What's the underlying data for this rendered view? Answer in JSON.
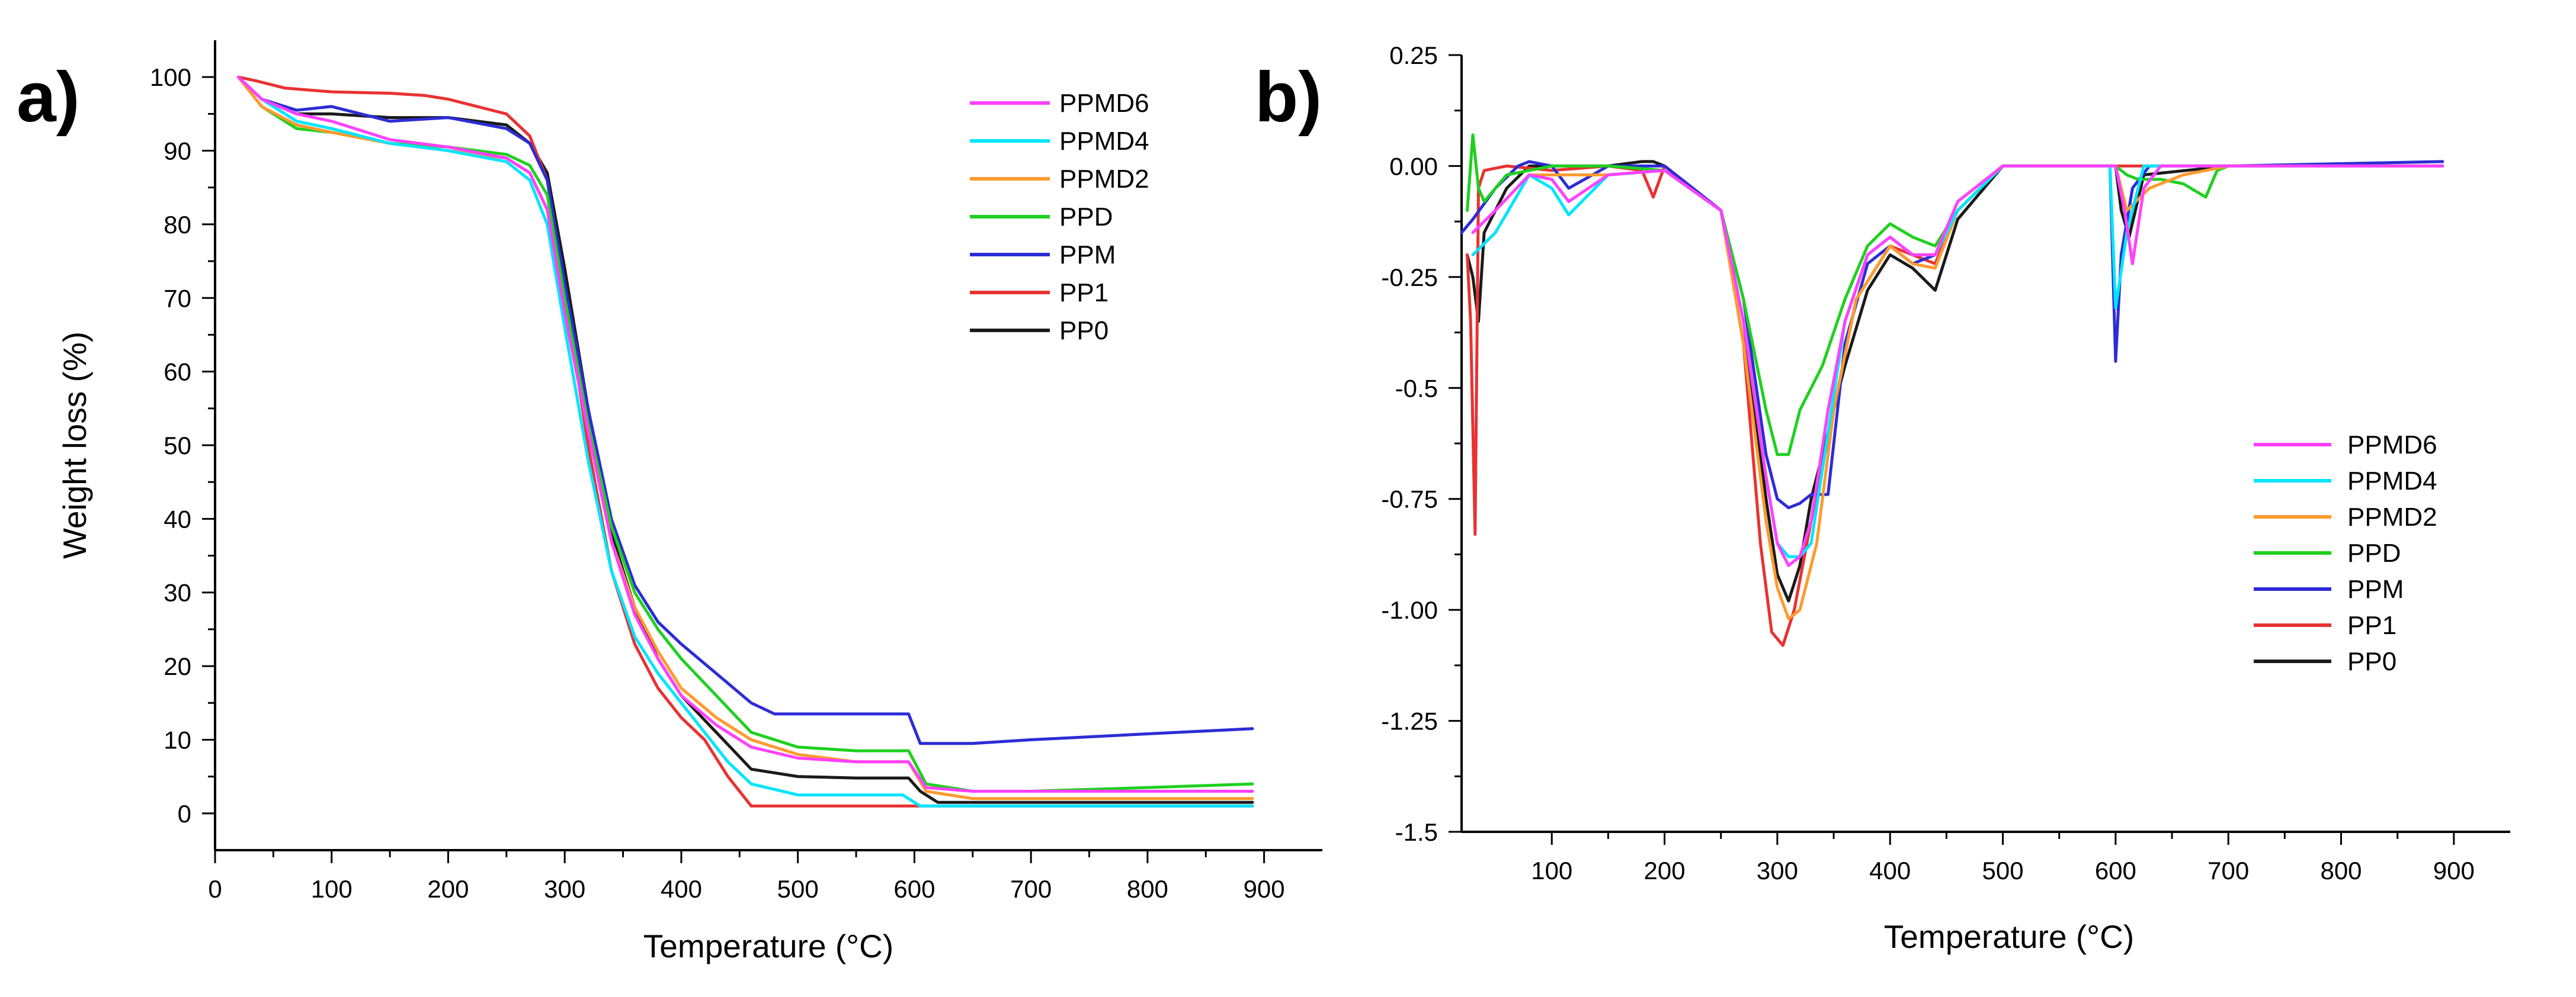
{
  "colors": {
    "PPMD6": "#ff40ff",
    "PPMD4": "#00e5ff",
    "PPMD2": "#ff9a2e",
    "PPD": "#1fd01f",
    "PPM": "#2c2cd6",
    "PP1": "#e83232",
    "PP0": "#1a1a1a"
  },
  "chart_data": [
    {
      "panel": "a)",
      "type": "line",
      "title": "",
      "xlabel": "Temperature (°C)",
      "ylabel": "Weight loss (%)",
      "xlim": [
        0,
        950
      ],
      "ylim": [
        -5,
        105
      ],
      "xticks": [
        0,
        100,
        200,
        300,
        400,
        500,
        600,
        700,
        800,
        900
      ],
      "yticks": [
        0,
        10,
        20,
        30,
        40,
        50,
        60,
        70,
        80,
        90,
        100
      ],
      "legend": [
        "PPMD6",
        "PPMD4",
        "PPMD2",
        "PPD",
        "PPM",
        "PP1",
        "PP0"
      ],
      "legend_position": "top-right",
      "series": [
        {
          "name": "PPMD6",
          "x": [
            20,
            40,
            70,
            100,
            150,
            200,
            250,
            270,
            285,
            300,
            320,
            340,
            360,
            380,
            400,
            430,
            460,
            500,
            550,
            595,
            610,
            650,
            700,
            800,
            890
          ],
          "y": [
            100,
            97,
            95,
            94,
            91.5,
            90.5,
            89,
            87,
            82,
            68,
            52,
            37,
            27,
            21,
            16,
            12,
            9,
            7.5,
            7,
            7,
            3.5,
            3,
            3,
            3,
            3
          ]
        },
        {
          "name": "PPMD4",
          "x": [
            20,
            40,
            70,
            100,
            150,
            200,
            250,
            270,
            285,
            300,
            320,
            340,
            360,
            380,
            400,
            420,
            440,
            460,
            500,
            550,
            590,
            605,
            650,
            700,
            800,
            890
          ],
          "y": [
            100,
            97,
            94,
            93,
            91,
            90,
            88.5,
            86,
            80,
            66,
            48,
            33,
            24,
            19,
            15,
            11,
            7,
            4,
            2.5,
            2.5,
            2.5,
            1,
            1,
            1,
            1,
            1
          ]
        },
        {
          "name": "PPMD2",
          "x": [
            20,
            40,
            70,
            100,
            150,
            200,
            250,
            270,
            285,
            300,
            320,
            340,
            360,
            380,
            400,
            430,
            460,
            500,
            550,
            595,
            610,
            650,
            700,
            800,
            890
          ],
          "y": [
            100,
            96,
            93.5,
            92.5,
            91,
            90,
            89,
            87,
            82,
            68,
            52,
            37,
            28,
            22,
            17,
            13,
            10,
            8,
            7,
            7,
            3,
            2,
            2,
            2,
            2
          ]
        },
        {
          "name": "PPD",
          "x": [
            20,
            40,
            70,
            100,
            150,
            200,
            250,
            270,
            285,
            300,
            320,
            340,
            360,
            380,
            400,
            430,
            460,
            500,
            550,
            595,
            610,
            650,
            700,
            800,
            890
          ],
          "y": [
            100,
            96,
            93,
            92.5,
            91,
            90.5,
            89.5,
            88,
            84,
            70,
            53,
            39,
            30,
            25,
            21,
            16,
            11,
            9,
            8.5,
            8.5,
            4,
            3,
            3,
            3.5,
            4
          ]
        },
        {
          "name": "PPM",
          "x": [
            20,
            40,
            70,
            100,
            150,
            200,
            250,
            270,
            285,
            300,
            320,
            340,
            360,
            380,
            400,
            430,
            460,
            480,
            500,
            550,
            595,
            605,
            650,
            700,
            800,
            890
          ],
          "y": [
            100,
            97,
            95.5,
            96,
            94,
            94.5,
            93,
            91,
            86,
            72,
            55,
            40,
            31,
            26,
            23,
            19,
            15,
            13.5,
            13.5,
            13.5,
            13.5,
            9.5,
            9.5,
            10,
            10.8,
            11.5
          ]
        },
        {
          "name": "PP1",
          "x": [
            20,
            35,
            60,
            100,
            150,
            180,
            200,
            250,
            270,
            285,
            300,
            320,
            340,
            360,
            380,
            400,
            420,
            440,
            460,
            500,
            550,
            600,
            700,
            800,
            890
          ],
          "y": [
            100,
            99.5,
            98.5,
            98,
            97.8,
            97.5,
            97,
            95,
            92,
            86,
            71,
            50,
            33,
            23,
            17,
            13,
            10,
            5,
            1,
            1,
            1,
            1,
            1,
            1,
            1
          ]
        },
        {
          "name": "PP0",
          "x": [
            20,
            40,
            70,
            100,
            150,
            200,
            250,
            270,
            285,
            300,
            320,
            340,
            360,
            380,
            400,
            430,
            460,
            500,
            550,
            595,
            605,
            620,
            650,
            700,
            800,
            890
          ],
          "y": [
            100,
            97,
            95,
            95,
            94.5,
            94.5,
            93.5,
            91,
            87,
            74,
            55,
            38,
            28,
            21,
            16,
            11,
            6,
            5,
            4.8,
            4.8,
            3,
            1.5,
            1.5,
            1.5,
            1.5,
            1.5
          ]
        }
      ]
    },
    {
      "panel": "b)",
      "type": "line",
      "title": "",
      "xlabel": "Temperature (°C)",
      "ylabel": "",
      "xlim": [
        20,
        950
      ],
      "ylim": [
        -1.5,
        0.25
      ],
      "xticks": [
        100,
        200,
        300,
        400,
        500,
        600,
        700,
        800,
        900
      ],
      "yticks": [
        0.25,
        0,
        -0.25,
        -0.5,
        -0.75,
        -1,
        -1.25,
        -1.5
      ],
      "ytick_labels": [
        "0.25",
        "0.00",
        "-0.25",
        "-0.5",
        "-0.75",
        "-1.00",
        "-1.25",
        "-1.5"
      ],
      "legend": [
        "PPMD6",
        "PPMD4",
        "PPMD2",
        "PPD",
        "PPM",
        "PP1",
        "PP0"
      ],
      "legend_position": "center-right",
      "series": [
        {
          "name": "PPMD6",
          "x": [
            30,
            50,
            80,
            100,
            115,
            150,
            200,
            250,
            270,
            290,
            300,
            310,
            320,
            330,
            345,
            360,
            380,
            400,
            420,
            440,
            460,
            500,
            600,
            608,
            615,
            625,
            640,
            700,
            890
          ],
          "y": [
            -0.15,
            -0.1,
            -0.02,
            -0.03,
            -0.08,
            -0.02,
            -0.01,
            -0.1,
            -0.35,
            -0.7,
            -0.85,
            -0.9,
            -0.88,
            -0.8,
            -0.55,
            -0.35,
            -0.2,
            -0.16,
            -0.2,
            -0.2,
            -0.08,
            0,
            0,
            -0.1,
            -0.22,
            -0.05,
            0,
            0,
            0
          ]
        },
        {
          "name": "PPMD4",
          "x": [
            30,
            50,
            80,
            100,
            115,
            150,
            200,
            250,
            270,
            290,
            300,
            310,
            320,
            330,
            345,
            360,
            380,
            400,
            420,
            440,
            460,
            500,
            595,
            600,
            610,
            625,
            700,
            890
          ],
          "y": [
            -0.2,
            -0.15,
            -0.02,
            -0.05,
            -0.11,
            -0.02,
            -0.01,
            -0.1,
            -0.35,
            -0.7,
            -0.85,
            -0.88,
            -0.88,
            -0.85,
            -0.6,
            -0.35,
            -0.2,
            -0.16,
            -0.2,
            -0.2,
            -0.1,
            0,
            0,
            -0.32,
            -0.15,
            0,
            0,
            0
          ]
        },
        {
          "name": "PPMD2",
          "x": [
            30,
            50,
            80,
            100,
            150,
            200,
            250,
            270,
            290,
            300,
            310,
            320,
            335,
            350,
            370,
            400,
            420,
            440,
            460,
            500,
            600,
            610,
            630,
            660,
            700,
            890
          ],
          "y": [
            -0.2,
            -0.15,
            -0.02,
            -0.02,
            -0.02,
            -0.01,
            -0.1,
            -0.4,
            -0.8,
            -0.95,
            -1.02,
            -1.0,
            -0.85,
            -0.55,
            -0.3,
            -0.18,
            -0.22,
            -0.23,
            -0.1,
            0,
            0,
            -0.1,
            -0.05,
            -0.02,
            0,
            0
          ]
        },
        {
          "name": "PPD",
          "x": [
            25,
            30,
            35,
            40,
            60,
            100,
            150,
            200,
            250,
            270,
            290,
            300,
            310,
            320,
            340,
            360,
            380,
            400,
            420,
            440,
            460,
            500,
            600,
            610,
            620,
            640,
            660,
            680,
            690,
            700,
            890
          ],
          "y": [
            -0.1,
            0.07,
            -0.05,
            -0.08,
            -0.02,
            0,
            0,
            -0.01,
            -0.1,
            -0.3,
            -0.55,
            -0.65,
            -0.65,
            -0.55,
            -0.45,
            -0.3,
            -0.18,
            -0.13,
            -0.16,
            -0.18,
            -0.1,
            0,
            0,
            -0.02,
            -0.03,
            -0.03,
            -0.04,
            -0.07,
            -0.01,
            0,
            0
          ]
        },
        {
          "name": "PPM",
          "x": [
            20,
            30,
            50,
            70,
            80,
            100,
            115,
            150,
            200,
            250,
            270,
            290,
            300,
            310,
            320,
            330,
            345,
            360,
            380,
            400,
            420,
            440,
            460,
            500,
            595,
            600,
            605,
            615,
            630,
            700,
            890
          ],
          "y": [
            -0.15,
            -0.12,
            -0.05,
            0,
            0.01,
            0,
            -0.05,
            0,
            0,
            -0.1,
            -0.3,
            -0.65,
            -0.75,
            -0.77,
            -0.76,
            -0.74,
            -0.74,
            -0.4,
            -0.22,
            -0.18,
            -0.22,
            -0.2,
            -0.1,
            0,
            0,
            -0.44,
            -0.2,
            -0.05,
            0,
            0,
            0.01
          ]
        },
        {
          "name": "PP1",
          "x": [
            25,
            28,
            32,
            35,
            40,
            60,
            100,
            150,
            180,
            190,
            200,
            250,
            270,
            285,
            295,
            305,
            315,
            330,
            350,
            370,
            400,
            420,
            440,
            460,
            500,
            600,
            700,
            890
          ],
          "y": [
            -0.2,
            -0.35,
            -0.83,
            -0.05,
            -0.01,
            0,
            -0.01,
            0,
            -0.01,
            -0.07,
            0,
            -0.1,
            -0.4,
            -0.85,
            -1.05,
            -1.08,
            -1.0,
            -0.8,
            -0.55,
            -0.3,
            -0.18,
            -0.2,
            -0.22,
            -0.1,
            0,
            0,
            0,
            0
          ]
        },
        {
          "name": "PP0",
          "x": [
            25,
            30,
            35,
            40,
            60,
            80,
            100,
            150,
            180,
            190,
            200,
            250,
            270,
            290,
            300,
            310,
            320,
            330,
            345,
            360,
            380,
            400,
            420,
            440,
            460,
            500,
            600,
            605,
            612,
            625,
            700,
            890
          ],
          "y": [
            -0.2,
            -0.25,
            -0.35,
            -0.15,
            -0.05,
            0,
            0,
            0,
            0.01,
            0.01,
            0,
            -0.1,
            -0.35,
            -0.75,
            -0.92,
            -0.98,
            -0.9,
            -0.75,
            -0.6,
            -0.45,
            -0.28,
            -0.2,
            -0.23,
            -0.28,
            -0.12,
            0,
            0,
            -0.1,
            -0.16,
            -0.02,
            0,
            0
          ]
        }
      ]
    }
  ]
}
